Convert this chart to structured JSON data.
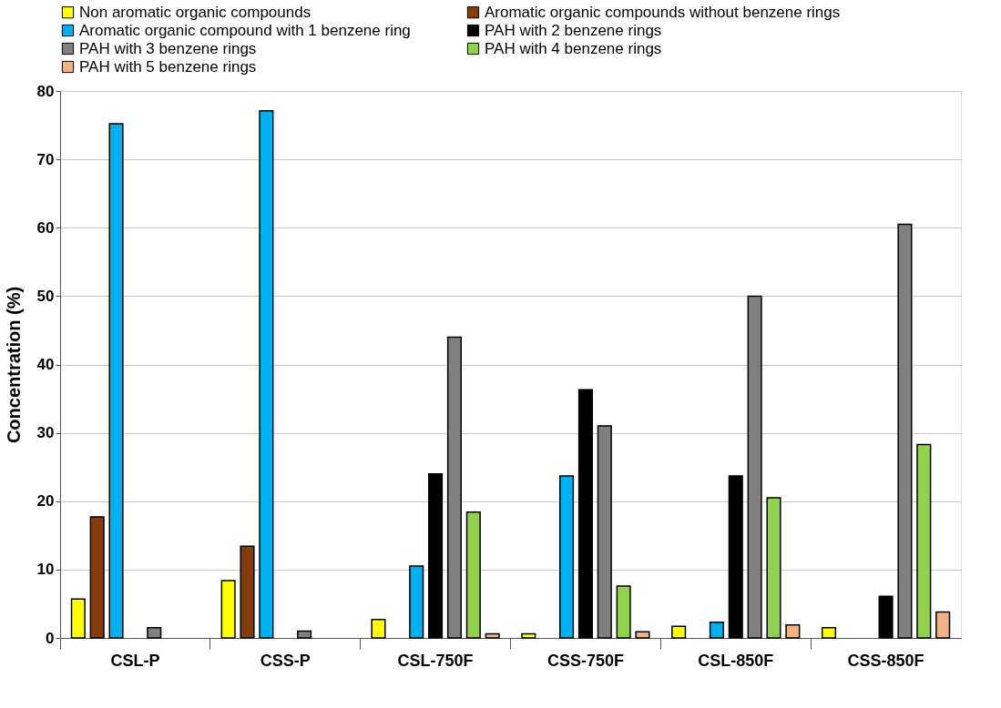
{
  "chart_data": {
    "type": "bar",
    "ylabel": "Concentration (%)",
    "categories": [
      "CSL-P",
      "CSS-P",
      "CSL-750F",
      "CSS-750F",
      "CSL-850F",
      "CSS-850F"
    ],
    "series": [
      {
        "name": "Non aromatic organic compounds",
        "color": "#ffff00",
        "values": [
          5.7,
          8.4,
          2.7,
          0.6,
          1.7,
          1.5
        ]
      },
      {
        "name": "Aromatic organic compounds without benzene rings",
        "color": "#843c0c",
        "values": [
          17.7,
          13.4,
          null,
          null,
          null,
          null
        ]
      },
      {
        "name": "Aromatic organic compound with 1 benzene ring",
        "color": "#00b0f0",
        "values": [
          75.2,
          77.1,
          10.5,
          23.7,
          2.3,
          null
        ]
      },
      {
        "name": "PAH with 2 benzene rings",
        "color": "#000000",
        "values": [
          null,
          null,
          24.0,
          36.3,
          23.7,
          6.1
        ]
      },
      {
        "name": "PAH with 3 benzene rings",
        "color": "#808080",
        "values": [
          1.5,
          1.0,
          44.0,
          31.0,
          50.0,
          60.5
        ]
      },
      {
        "name": "PAH with 4 benzene rings",
        "color": "#92d050",
        "values": [
          null,
          null,
          18.4,
          7.6,
          20.5,
          28.3
        ]
      },
      {
        "name": "PAH with 5 benzene rings",
        "color": "#f4b183",
        "values": [
          null,
          null,
          0.6,
          0.9,
          1.9,
          3.8
        ]
      }
    ],
    "ylim": [
      0,
      80
    ],
    "yticks": [
      0,
      10,
      20,
      30,
      40,
      50,
      60,
      70,
      80
    ],
    "grid": "y",
    "legend": "top"
  }
}
